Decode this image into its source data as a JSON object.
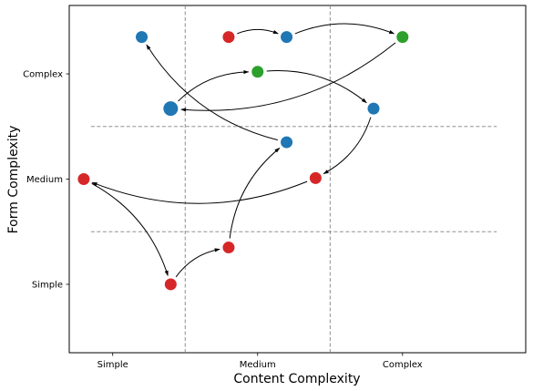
{
  "chart_data": {
    "type": "scatter",
    "xlabel": "Content Complexity",
    "ylabel": "Form Complexity",
    "x_tick_labels": [
      "Simple",
      "Medium",
      "Complex"
    ],
    "y_tick_labels": [
      "Simple",
      "Medium",
      "Complex"
    ],
    "xlim": [
      -0.3,
      2.85
    ],
    "ylim": [
      -0.65,
      2.65
    ],
    "grid": false,
    "legend": "none",
    "dividers": {
      "vertical": [
        0.5,
        1.5
      ],
      "horizontal": [
        0.5,
        1.5
      ]
    },
    "colors": {
      "red": "#d62728",
      "blue": "#1f77b4",
      "green": "#2ca02c",
      "line": "#000000",
      "divider": "#808080"
    },
    "points": [
      {
        "id": "p1",
        "x": -0.2,
        "y": 1.0,
        "color": "red",
        "r": 7
      },
      {
        "id": "p2",
        "x": 0.4,
        "y": 0.0,
        "color": "red",
        "r": 7
      },
      {
        "id": "p3",
        "x": 0.8,
        "y": 0.35,
        "color": "red",
        "r": 7
      },
      {
        "id": "p4",
        "x": 1.2,
        "y": 1.35,
        "color": "blue",
        "r": 7
      },
      {
        "id": "p5",
        "x": 0.2,
        "y": 2.35,
        "color": "blue",
        "r": 7
      },
      {
        "id": "p6",
        "x": 0.8,
        "y": 2.35,
        "color": "red",
        "r": 7
      },
      {
        "id": "p7",
        "x": 1.2,
        "y": 2.35,
        "color": "blue",
        "r": 7
      },
      {
        "id": "p8",
        "x": 2.0,
        "y": 2.35,
        "color": "green",
        "r": 7
      },
      {
        "id": "p9",
        "x": 0.4,
        "y": 1.67,
        "color": "blue",
        "r": 8.5
      },
      {
        "id": "p10",
        "x": 1.0,
        "y": 2.02,
        "color": "green",
        "r": 7
      },
      {
        "id": "p11",
        "x": 1.8,
        "y": 1.67,
        "color": "blue",
        "r": 7
      },
      {
        "id": "p12",
        "x": 1.4,
        "y": 1.01,
        "color": "red",
        "r": 7
      }
    ],
    "arrows": [
      {
        "from": "p1",
        "to": "p2",
        "rad": 0.2
      },
      {
        "from": "p2",
        "to": "p3",
        "rad": 0.2
      },
      {
        "from": "p3",
        "to": "p4",
        "rad": 0.2
      },
      {
        "from": "p4",
        "to": "p5",
        "rad": 0.2
      },
      {
        "from": "p6",
        "to": "p7",
        "rad": 0.2
      },
      {
        "from": "p7",
        "to": "p8",
        "rad": 0.2
      },
      {
        "from": "p8",
        "to": "p9",
        "rad": 0.2
      },
      {
        "from": "p9",
        "to": "p10",
        "rad": 0.2
      },
      {
        "from": "p10",
        "to": "p11",
        "rad": 0.2
      },
      {
        "from": "p11",
        "to": "p12",
        "rad": 0.2
      },
      {
        "from": "p12",
        "to": "p1",
        "rad": 0.2
      }
    ]
  }
}
